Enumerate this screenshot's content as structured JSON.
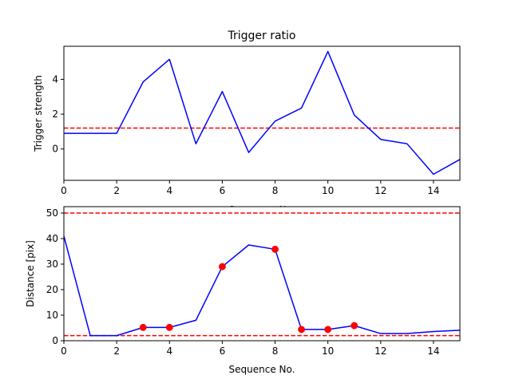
{
  "chart_data": [
    {
      "type": "line",
      "title": "Trigger ratio",
      "xlabel": "Sequence No.",
      "ylabel": "Trigger strength",
      "xlim": [
        0,
        15
      ],
      "ylim": [
        -1.8,
        5.9
      ],
      "xticks": [
        0,
        2,
        4,
        6,
        8,
        10,
        12,
        14
      ],
      "yticks": [
        0,
        2,
        4
      ],
      "grid": false,
      "series": [
        {
          "color": "#0000ff",
          "x": [
            0,
            1,
            2,
            3,
            4,
            5,
            6,
            7,
            8,
            9,
            10,
            11,
            12,
            13,
            14,
            15
          ],
          "values": [
            0.9,
            0.9,
            0.9,
            3.85,
            5.15,
            0.3,
            3.3,
            -0.2,
            1.6,
            2.35,
            5.6,
            1.95,
            0.55,
            0.3,
            -1.45,
            -0.6
          ]
        }
      ],
      "hlines": [
        {
          "y": 1.2,
          "color": "#ff0000",
          "style": "dashed"
        }
      ]
    },
    {
      "type": "line",
      "title": "",
      "xlabel": "Sequence No.",
      "ylabel": "Distance [pix]",
      "xlim": [
        0,
        15
      ],
      "ylim": [
        0,
        52.5
      ],
      "xticks": [
        0,
        2,
        4,
        6,
        8,
        10,
        12,
        14
      ],
      "yticks": [
        0,
        10,
        20,
        30,
        40,
        50
      ],
      "grid": false,
      "series": [
        {
          "color": "#0000ff",
          "x": [
            0,
            1,
            2,
            3,
            4,
            5,
            6,
            7,
            8,
            9,
            10,
            11,
            12,
            13,
            14,
            15
          ],
          "values": [
            41,
            2,
            2,
            5.2,
            5.2,
            8,
            29,
            37.5,
            35.8,
            4.4,
            4.4,
            5.9,
            2.8,
            2.8,
            3.6,
            4.1
          ]
        }
      ],
      "markers": {
        "color": "#ff0000",
        "x": [
          3,
          4,
          6,
          8,
          9,
          10,
          11
        ],
        "values": [
          5.2,
          5.2,
          29,
          35.8,
          4.4,
          4.4,
          5.9
        ]
      },
      "hlines": [
        {
          "y": 50,
          "color": "#ff0000",
          "style": "dashed"
        },
        {
          "y": 2,
          "color": "#ff0000",
          "style": "dashed"
        }
      ]
    }
  ]
}
